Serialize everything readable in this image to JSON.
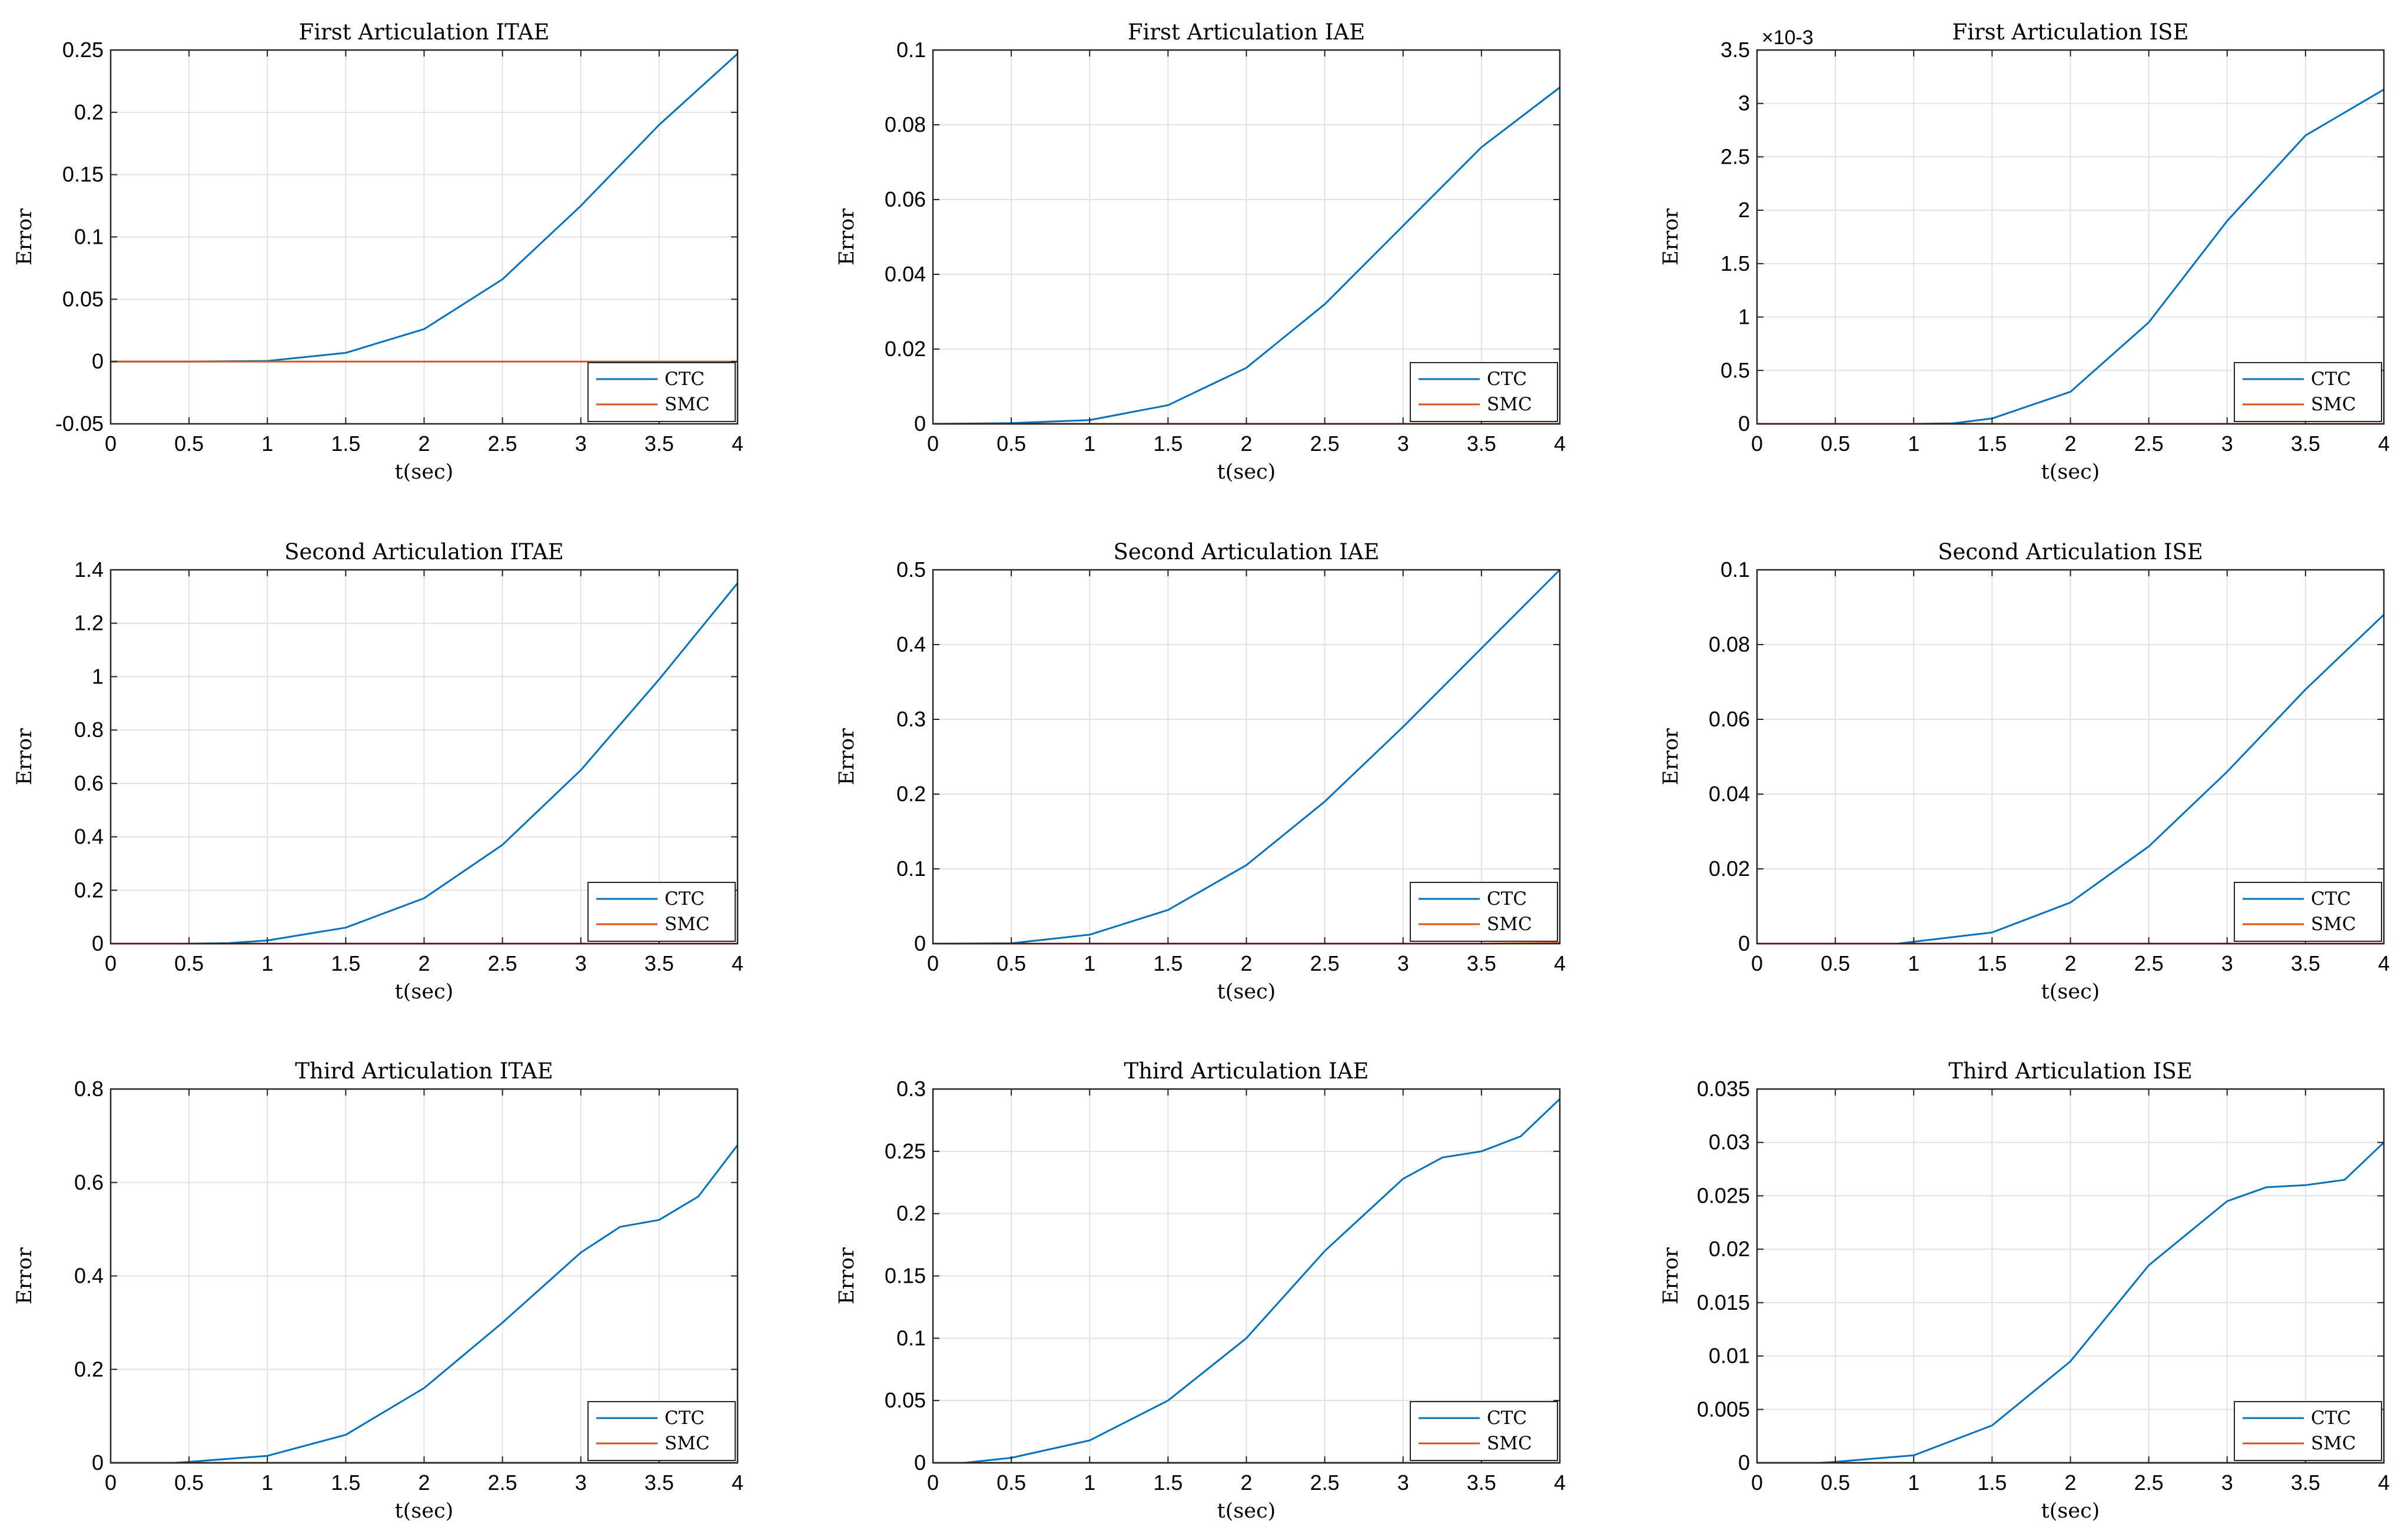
{
  "figure": {
    "colors": {
      "CTC": "#0072BD",
      "SMC": "#D95319",
      "grid": "#e3e3e3",
      "axis": "#262626"
    }
  },
  "chart_data": [
    {
      "type": "line",
      "title": "First Articulation ITAE",
      "xlabel": "t(sec)",
      "ylabel": "Error",
      "xlim": [
        0,
        4
      ],
      "ylim": [
        -0.05,
        0.25
      ],
      "xticks": [
        "0",
        "0.5",
        "1",
        "1.5",
        "2",
        "2.5",
        "3",
        "3.5",
        "4"
      ],
      "yticks": [
        "-0.05",
        "0",
        "0.05",
        "0.1",
        "0.15",
        "0.2",
        "0.25"
      ],
      "exponent": "",
      "legend": [
        "CTC",
        "SMC"
      ],
      "grid": true,
      "legend_position": "bottom-right",
      "x": [
        0,
        0.5,
        1.0,
        1.5,
        2.0,
        2.5,
        3.0,
        3.5,
        4.0
      ],
      "series": [
        {
          "name": "CTC",
          "values": [
            0,
            0,
            0.0005,
            0.007,
            0.026,
            0.066,
            0.125,
            0.19,
            0.247
          ]
        },
        {
          "name": "SMC",
          "values": [
            0,
            0,
            0,
            0,
            0,
            0,
            0,
            0,
            0
          ]
        }
      ]
    },
    {
      "type": "line",
      "title": "First Articulation IAE",
      "xlabel": "t(sec)",
      "ylabel": "Error",
      "xlim": [
        0,
        4
      ],
      "ylim": [
        0,
        0.1
      ],
      "xticks": [
        "0",
        "0.5",
        "1",
        "1.5",
        "2",
        "2.5",
        "3",
        "3.5",
        "4"
      ],
      "yticks": [
        "0",
        "0.02",
        "0.04",
        "0.06",
        "0.08",
        "0.1"
      ],
      "exponent": "",
      "legend": [
        "CTC",
        "SMC"
      ],
      "grid": true,
      "legend_position": "bottom-right",
      "x": [
        0,
        0.5,
        1.0,
        1.5,
        2.0,
        2.5,
        3.0,
        3.5,
        4.0
      ],
      "series": [
        {
          "name": "CTC",
          "values": [
            0,
            0.0002,
            0.001,
            0.005,
            0.015,
            0.032,
            0.053,
            0.074,
            0.09
          ]
        },
        {
          "name": "SMC",
          "values": [
            0,
            0,
            0,
            0,
            0,
            0,
            0,
            0,
            0
          ]
        }
      ]
    },
    {
      "type": "line",
      "title": "First Articulation ISE",
      "xlabel": "t(sec)",
      "ylabel": "Error",
      "xlim": [
        0,
        4
      ],
      "ylim": [
        0,
        3.5
      ],
      "xticks": [
        "0",
        "0.5",
        "1",
        "1.5",
        "2",
        "2.5",
        "3",
        "3.5",
        "4"
      ],
      "yticks": [
        "0",
        "0.5",
        "1",
        "1.5",
        "2",
        "2.5",
        "3",
        "3.5"
      ],
      "exponent": "×10-3",
      "legend": [
        "CTC",
        "SMC"
      ],
      "grid": true,
      "legend_position": "bottom-right",
      "x": [
        0,
        0.5,
        1.0,
        1.25,
        1.5,
        2.0,
        2.5,
        3.0,
        3.5,
        4.0
      ],
      "series": [
        {
          "name": "CTC",
          "values": [
            0,
            0,
            0,
            0.005,
            0.05,
            0.3,
            0.95,
            1.9,
            2.7,
            3.13
          ]
        },
        {
          "name": "SMC",
          "values": [
            0,
            0,
            0,
            0,
            0,
            0,
            0,
            0,
            0,
            0
          ]
        }
      ]
    },
    {
      "type": "line",
      "title": "Second Articulation ITAE",
      "xlabel": "t(sec)",
      "ylabel": "Error",
      "xlim": [
        0,
        4
      ],
      "ylim": [
        0,
        1.4
      ],
      "xticks": [
        "0",
        "0.5",
        "1",
        "1.5",
        "2",
        "2.5",
        "3",
        "3.5",
        "4"
      ],
      "yticks": [
        "0",
        "0.2",
        "0.4",
        "0.6",
        "0.8",
        "1",
        "1.2",
        "1.4"
      ],
      "exponent": "",
      "legend": [
        "CTC",
        "SMC"
      ],
      "grid": true,
      "legend_position": "bottom-right",
      "x": [
        0,
        0.5,
        0.75,
        1.0,
        1.5,
        2.0,
        2.5,
        3.0,
        3.5,
        4.0
      ],
      "series": [
        {
          "name": "CTC",
          "values": [
            0,
            0,
            0.002,
            0.012,
            0.06,
            0.17,
            0.37,
            0.65,
            0.99,
            1.35
          ]
        },
        {
          "name": "SMC",
          "values": [
            0,
            0,
            0,
            0,
            0,
            0,
            0,
            0,
            0,
            0
          ]
        }
      ]
    },
    {
      "type": "line",
      "title": "Second Articulation IAE",
      "xlabel": "t(sec)",
      "ylabel": "Error",
      "xlim": [
        0,
        4
      ],
      "ylim": [
        0,
        0.5
      ],
      "xticks": [
        "0",
        "0.5",
        "1",
        "1.5",
        "2",
        "2.5",
        "3",
        "3.5",
        "4"
      ],
      "yticks": [
        "0",
        "0.1",
        "0.2",
        "0.3",
        "0.4",
        "0.5"
      ],
      "exponent": "",
      "legend": [
        "CTC",
        "SMC"
      ],
      "grid": true,
      "legend_position": "bottom-right",
      "x": [
        0,
        0.5,
        1.0,
        1.5,
        2.0,
        2.5,
        3.0,
        3.5,
        4.0
      ],
      "series": [
        {
          "name": "CTC",
          "values": [
            0,
            0.0005,
            0.012,
            0.045,
            0.105,
            0.19,
            0.29,
            0.395,
            0.5
          ]
        },
        {
          "name": "SMC",
          "values": [
            0,
            0,
            0,
            0,
            0,
            0,
            0,
            0,
            0.001
          ]
        }
      ]
    },
    {
      "type": "line",
      "title": "Second Articulation ISE",
      "xlabel": "t(sec)",
      "ylabel": "Error",
      "xlim": [
        0,
        4
      ],
      "ylim": [
        0,
        0.1
      ],
      "xticks": [
        "0",
        "0.5",
        "1",
        "1.5",
        "2",
        "2.5",
        "3",
        "3.5",
        "4"
      ],
      "yticks": [
        "0",
        "0.02",
        "0.04",
        "0.06",
        "0.08",
        "0.1"
      ],
      "exponent": "",
      "legend": [
        "CTC",
        "SMC"
      ],
      "grid": true,
      "legend_position": "bottom-right",
      "x": [
        0,
        0.5,
        0.9,
        1.0,
        1.5,
        2.0,
        2.5,
        3.0,
        3.5,
        4.0
      ],
      "series": [
        {
          "name": "CTC",
          "values": [
            0,
            0,
            0,
            0.0005,
            0.003,
            0.011,
            0.026,
            0.046,
            0.068,
            0.088
          ]
        },
        {
          "name": "SMC",
          "values": [
            0,
            0,
            0,
            0,
            0,
            0,
            0,
            0,
            0,
            0
          ]
        }
      ]
    },
    {
      "type": "line",
      "title": "Third Articulation ITAE",
      "xlabel": "t(sec)",
      "ylabel": "Error",
      "xlim": [
        0,
        4
      ],
      "ylim": [
        0,
        0.8
      ],
      "xticks": [
        "0",
        "0.5",
        "1",
        "1.5",
        "2",
        "2.5",
        "3",
        "3.5",
        "4"
      ],
      "yticks": [
        "0",
        "0.2",
        "0.4",
        "0.6",
        "0.8"
      ],
      "exponent": "",
      "legend": [
        "CTC",
        "SMC"
      ],
      "grid": true,
      "legend_position": "bottom-right",
      "x": [
        0,
        0.4,
        0.5,
        1.0,
        1.5,
        2.0,
        2.5,
        3.0,
        3.25,
        3.5,
        3.75,
        4.0
      ],
      "series": [
        {
          "name": "CTC",
          "values": [
            0,
            0,
            0.002,
            0.015,
            0.06,
            0.16,
            0.3,
            0.45,
            0.505,
            0.52,
            0.57,
            0.68
          ]
        },
        {
          "name": "SMC",
          "values": [
            0,
            0,
            0,
            0,
            0,
            0,
            0,
            0,
            0,
            0,
            0,
            0
          ]
        }
      ]
    },
    {
      "type": "line",
      "title": "Third Articulation IAE",
      "xlabel": "t(sec)",
      "ylabel": "Error",
      "xlim": [
        0,
        4
      ],
      "ylim": [
        0,
        0.3
      ],
      "xticks": [
        "0",
        "0.5",
        "1",
        "1.5",
        "2",
        "2.5",
        "3",
        "3.5",
        "4"
      ],
      "yticks": [
        "0",
        "0.05",
        "0.1",
        "0.15",
        "0.2",
        "0.25",
        "0.3"
      ],
      "exponent": "",
      "legend": [
        "CTC",
        "SMC"
      ],
      "grid": true,
      "legend_position": "bottom-right",
      "x": [
        0,
        0.2,
        0.5,
        1.0,
        1.5,
        2.0,
        2.5,
        3.0,
        3.25,
        3.5,
        3.75,
        4.0
      ],
      "series": [
        {
          "name": "CTC",
          "values": [
            0,
            0,
            0.004,
            0.018,
            0.05,
            0.1,
            0.17,
            0.228,
            0.245,
            0.25,
            0.262,
            0.292
          ]
        },
        {
          "name": "SMC",
          "values": [
            0,
            0,
            0,
            0,
            0,
            0,
            0,
            0,
            0,
            0,
            0,
            0
          ]
        }
      ]
    },
    {
      "type": "line",
      "title": "Third Articulation ISE",
      "xlabel": "t(sec)",
      "ylabel": "Error",
      "xlim": [
        0,
        4
      ],
      "ylim": [
        0,
        0.035
      ],
      "xticks": [
        "0",
        "0.5",
        "1",
        "1.5",
        "2",
        "2.5",
        "3",
        "3.5",
        "4"
      ],
      "yticks": [
        "0",
        "0.005",
        "0.01",
        "0.015",
        "0.02",
        "0.025",
        "0.03",
        "0.035"
      ],
      "exponent": "",
      "legend": [
        "CTC",
        "SMC"
      ],
      "grid": true,
      "legend_position": "bottom-right",
      "x": [
        0,
        0.4,
        0.5,
        1.0,
        1.5,
        2.0,
        2.5,
        3.0,
        3.25,
        3.5,
        3.75,
        4.0
      ],
      "series": [
        {
          "name": "CTC",
          "values": [
            0,
            0,
            0.0001,
            0.0007,
            0.0035,
            0.0095,
            0.0185,
            0.0245,
            0.0258,
            0.026,
            0.0265,
            0.03
          ]
        },
        {
          "name": "SMC",
          "values": [
            0,
            0,
            0,
            0,
            0,
            0,
            0,
            0,
            0,
            0,
            0,
            0
          ]
        }
      ]
    }
  ]
}
